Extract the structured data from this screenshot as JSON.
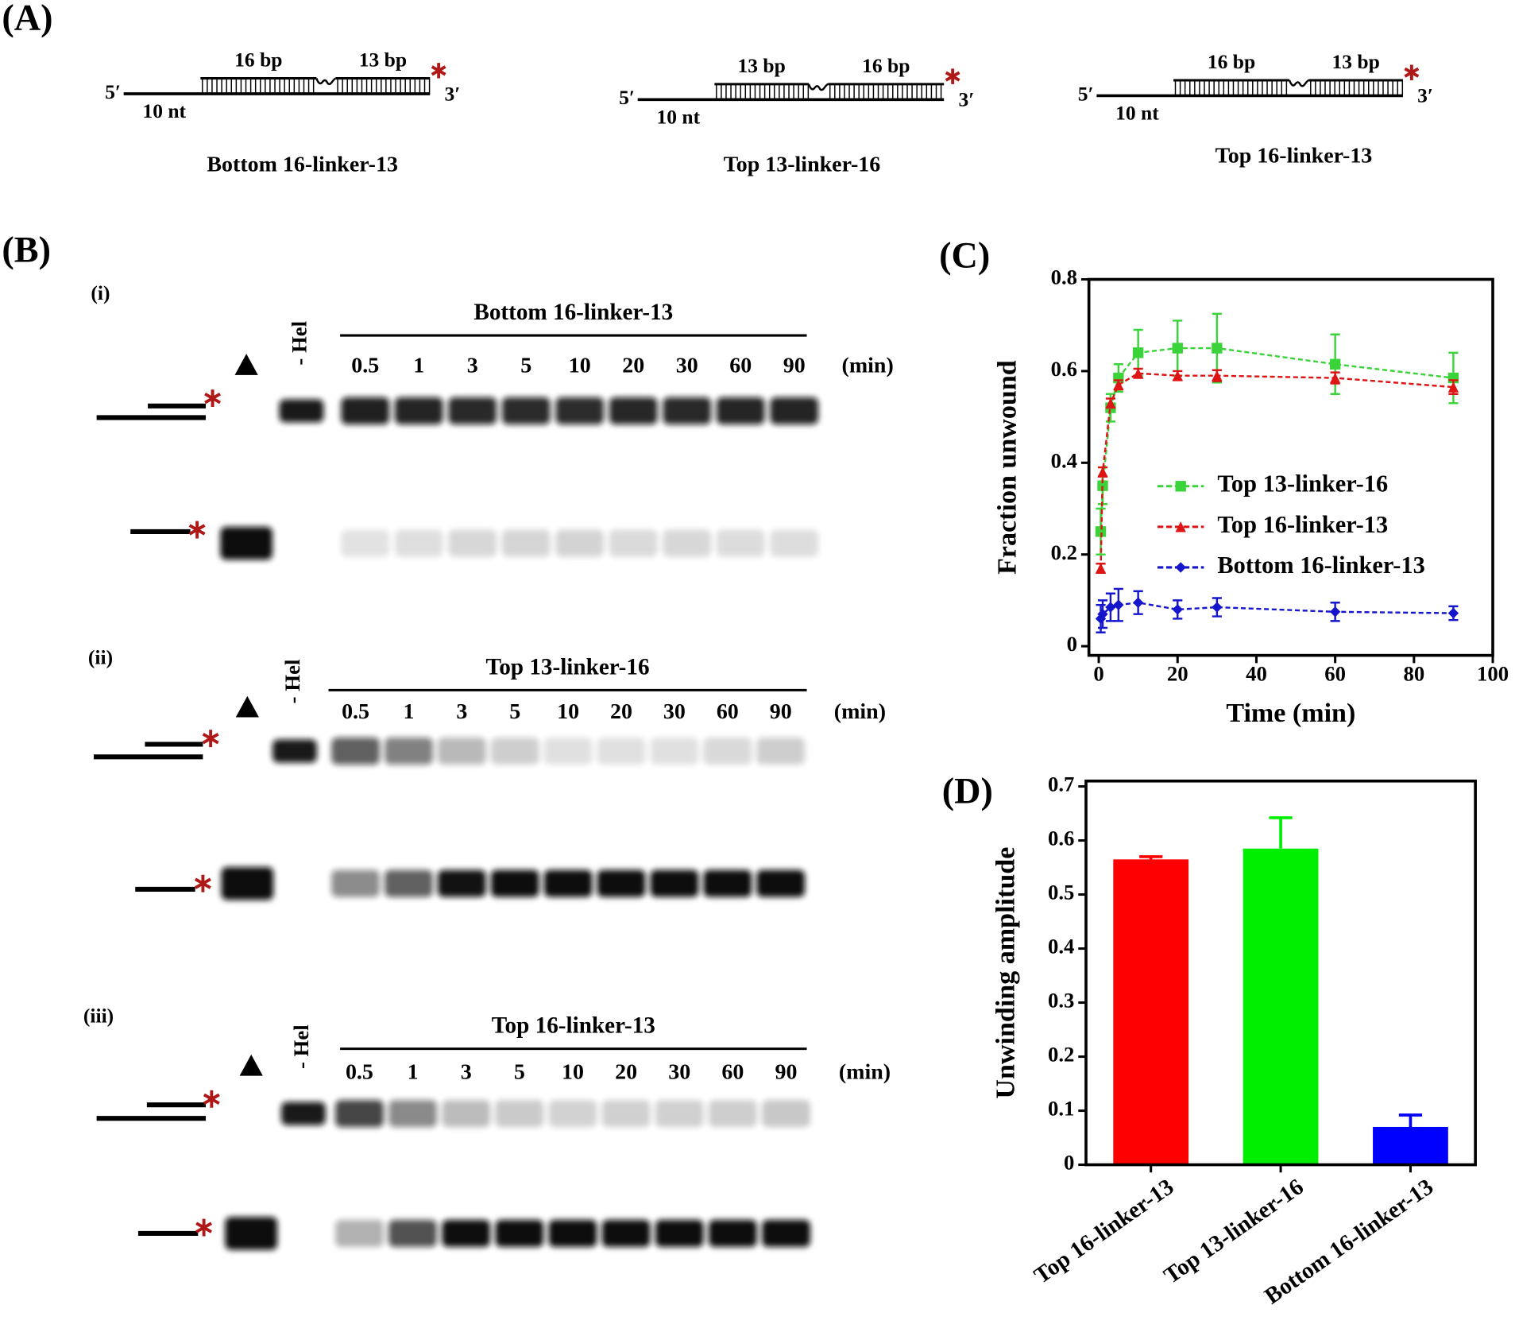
{
  "panel_labels": {
    "a": "(A)",
    "b": "(B)",
    "c": "(C)",
    "d": "(D)"
  },
  "substrates": [
    {
      "name": "Bottom 16-linker-13",
      "left_bp": "16 bp",
      "right_bp": "13 bp",
      "five_prime": "5′",
      "three_prime": "3′",
      "tail": "10 nt"
    },
    {
      "name": "Top 13-linker-16",
      "left_bp": "13 bp",
      "right_bp": "16 bp",
      "five_prime": "5′",
      "three_prime": "3′",
      "tail": "10 nt"
    },
    {
      "name": "Top 16-linker-13",
      "left_bp": "16 bp",
      "right_bp": "13 bp",
      "five_prime": "5′",
      "three_prime": "3′",
      "tail": "10 nt"
    }
  ],
  "gels": [
    {
      "label": "(i)",
      "title": "Bottom 16-linker-13",
      "control": "- Hel",
      "times": [
        "0.5",
        "1",
        "3",
        "5",
        "10",
        "20",
        "30",
        "60",
        "90"
      ],
      "unit": "(min)"
    },
    {
      "label": "(ii)",
      "title": "Top 13-linker-16",
      "control": "- Hel",
      "times": [
        "0.5",
        "1",
        "3",
        "5",
        "10",
        "20",
        "30",
        "60",
        "90"
      ],
      "unit": "(min)"
    },
    {
      "label": "(iii)",
      "title": "Top 16-linker-13",
      "control": "- Hel",
      "times": [
        "0.5",
        "1",
        "3",
        "5",
        "10",
        "20",
        "30",
        "60",
        "90"
      ],
      "unit": "(min)"
    }
  ],
  "chart_data": [
    {
      "type": "line",
      "xlabel": "Time (min)",
      "ylabel": "Fraction unwound",
      "x": [
        0.5,
        1,
        3,
        5,
        10,
        20,
        30,
        60,
        90
      ],
      "xlim": [
        -2.5,
        100
      ],
      "xticks": [
        0,
        20,
        40,
        60,
        80,
        100
      ],
      "ylim": [
        -0.02,
        0.8
      ],
      "yticks": [
        0,
        0.2,
        0.4,
        0.6,
        0.8
      ],
      "legend": "center-right",
      "series": [
        {
          "name": "Top 13-linker-16",
          "color": "#3ad43a",
          "marker": "square",
          "values": [
            0.25,
            0.35,
            0.52,
            0.585,
            0.64,
            0.65,
            0.65,
            0.615,
            0.585
          ],
          "errors": [
            0.05,
            0.04,
            0.03,
            0.03,
            0.05,
            0.06,
            0.075,
            0.065,
            0.055
          ]
        },
        {
          "name": "Top 16-linker-13",
          "color": "#dd1515",
          "marker": "triangle",
          "values": [
            0.17,
            0.38,
            0.53,
            0.57,
            0.595,
            0.59,
            0.59,
            0.585,
            0.565
          ],
          "errors": [
            0.01,
            0.01,
            0.01,
            0.01,
            0.01,
            0.01,
            0.012,
            0.012,
            0.015
          ]
        },
        {
          "name": "Bottom 16-linker-13",
          "color": "#1515cc",
          "marker": "diamond",
          "values": [
            0.06,
            0.07,
            0.085,
            0.09,
            0.095,
            0.08,
            0.085,
            0.075,
            0.072
          ],
          "errors": [
            0.03,
            0.03,
            0.03,
            0.035,
            0.025,
            0.02,
            0.02,
            0.02,
            0.015
          ]
        }
      ]
    },
    {
      "type": "bar",
      "ylabel": "Unwinding amplitude",
      "categories": [
        "Top 16-linker-13",
        "Top 13-linker-16",
        "Bottom 16-linker-13"
      ],
      "values": [
        0.565,
        0.585,
        0.07
      ],
      "errors": [
        0.005,
        0.057,
        0.022
      ],
      "colors": [
        "#ff0000",
        "#00ee00",
        "#0000ff"
      ],
      "ylim": [
        0,
        0.71
      ],
      "yticks": [
        0,
        0.1,
        0.2,
        0.3,
        0.4,
        0.5,
        0.6,
        0.7
      ]
    }
  ]
}
